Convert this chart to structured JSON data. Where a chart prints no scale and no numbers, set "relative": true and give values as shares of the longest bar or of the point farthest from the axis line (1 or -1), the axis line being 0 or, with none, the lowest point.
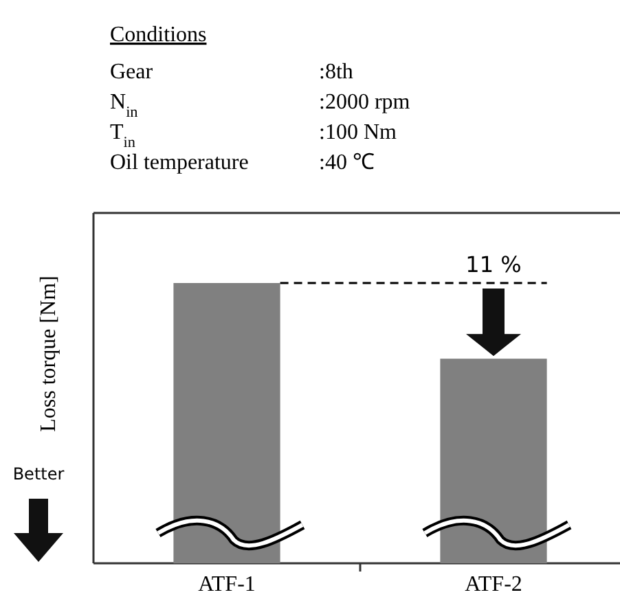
{
  "chart_data": {
    "type": "bar",
    "relative": true,
    "ylabel": "Loss torque [Nm]",
    "categories": [
      "ATF-1",
      "ATF-2"
    ],
    "values": [
      1,
      0.73
    ],
    "color": "#808080",
    "ref_lines": [
      {
        "axis": "y",
        "value": 1,
        "line_style": "dashed",
        "color": "#000000"
      }
    ],
    "annotations": [
      "Conditions",
      "Gear",
      ":8th",
      "N$_{in}$",
      ":2000 rpm",
      "T$_{in}$",
      ":100 Nm",
      "Oil temperature",
      ":40 ℃",
      "11 %",
      "Better"
    ]
  }
}
